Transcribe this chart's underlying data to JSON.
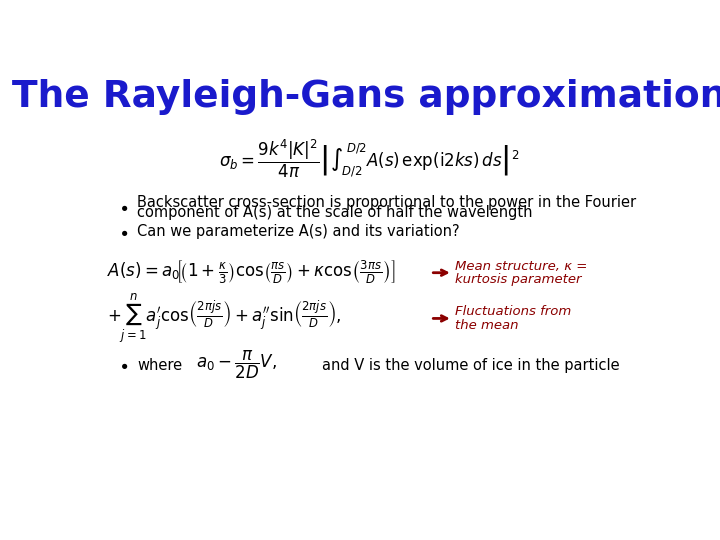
{
  "title": "The Rayleigh-Gans approximation",
  "title_color": "#1a1acc",
  "title_fontsize": 27,
  "background_color": "#ffffff",
  "annotation_color": "#8b0000",
  "bullet_color": "#000000",
  "eq_color": "#000000",
  "bullet1_line1": "Backscatter cross-section is proportional to the power in the Fourier",
  "bullet1_line2": "component of A(s) at the scale of half the wavelength",
  "bullet2": "Can we parameterize A(s) and its variation?",
  "annot1_line1": "Mean structure, κ =",
  "annot1_line2": "kurtosis parameter",
  "annot2_line1": "Fluctuations from",
  "annot2_line2": "the mean",
  "bullet3_word": "where",
  "bullet3_end": "and V is the volume of ice in the particle"
}
